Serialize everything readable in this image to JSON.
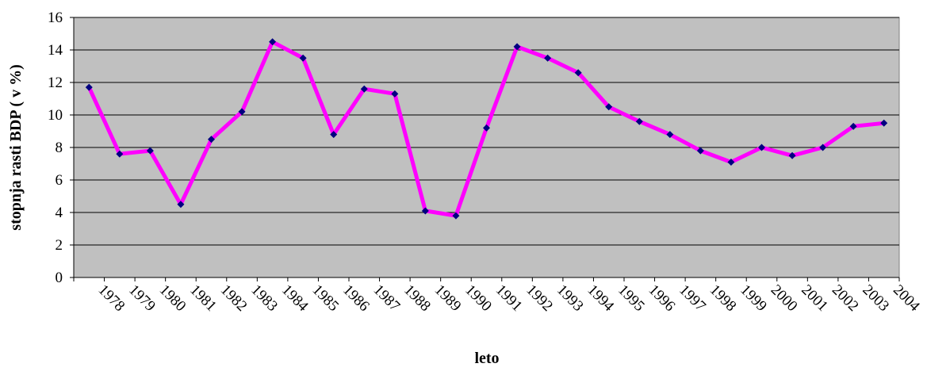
{
  "chart_data": {
    "type": "line",
    "title": "",
    "xlabel": "leto",
    "ylabel": "stopnja rasti BDP ( v %)",
    "ylim": [
      0,
      16
    ],
    "yticks": [
      "0",
      "2",
      "4",
      "6",
      "8",
      "10",
      "12",
      "14",
      "16"
    ],
    "categories": [
      "1978",
      "1979",
      "1980",
      "1981",
      "1982",
      "1983",
      "1984",
      "1985",
      "1986",
      "1987",
      "1988",
      "1989",
      "1990",
      "1991",
      "1992",
      "1993",
      "1994",
      "1995",
      "1996",
      "1997",
      "1998",
      "1999",
      "2000",
      "2001",
      "2002",
      "2003",
      "2004"
    ],
    "series": [
      {
        "values": [
          11.7,
          7.6,
          7.8,
          4.5,
          8.5,
          10.2,
          14.5,
          13.5,
          8.8,
          11.6,
          11.3,
          4.1,
          3.8,
          9.2,
          14.2,
          13.5,
          12.6,
          10.5,
          9.6,
          8.8,
          7.8,
          7.1,
          8.0,
          7.5,
          8.0,
          9.3,
          9.5
        ],
        "line_color": "#ff00ff",
        "marker_color": "#000080"
      }
    ],
    "grid": true,
    "plot_background": "#c0c0c0",
    "legend": "none"
  }
}
